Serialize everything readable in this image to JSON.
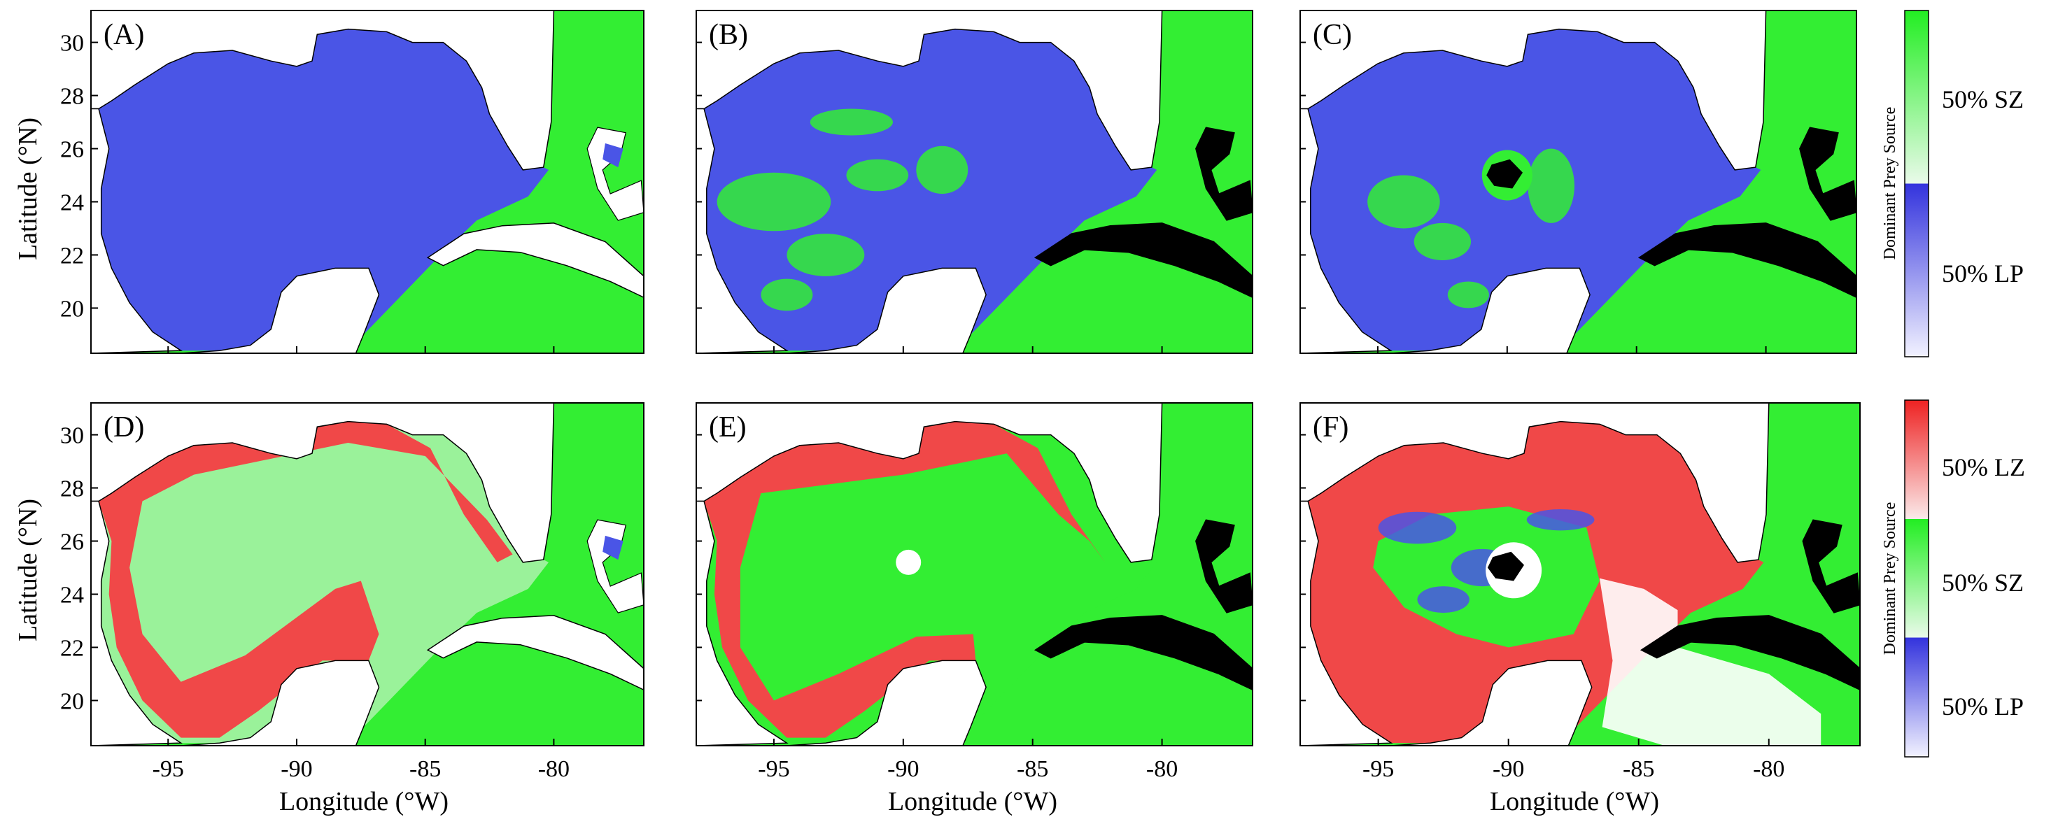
{
  "axes": {
    "xlabel": "Longitude (°W)",
    "ylabel": "Latitude (°N)",
    "x_ticks": [
      "-95",
      "-90",
      "-85",
      "-80"
    ],
    "y_ticks": [
      "30",
      "28",
      "26",
      "24",
      "22",
      "20"
    ]
  },
  "panels": [
    {
      "id": "A",
      "label": "(A)"
    },
    {
      "id": "B",
      "label": "(B)"
    },
    {
      "id": "C",
      "label": "(C)"
    },
    {
      "id": "D",
      "label": "(D)"
    },
    {
      "id": "E",
      "label": "(E)"
    },
    {
      "id": "F",
      "label": "(F)"
    }
  ],
  "colorbars": [
    {
      "title": "Dominant Prey Source",
      "labels": [
        "50% SZ",
        "50% LP"
      ],
      "colors": [
        "#22ee22",
        "#3333dd"
      ]
    },
    {
      "title": "Dominant Prey Source",
      "labels": [
        "50% LZ",
        "50% SZ",
        "50% LP"
      ],
      "colors": [
        "#ee2222",
        "#22ee22",
        "#3333dd"
      ]
    }
  ],
  "colors": {
    "land": "#ffffff",
    "island": "#000000",
    "lp": "#4a55e6",
    "sz": "#33ee33",
    "lz": "#f04848",
    "sz_light": "#9af29a"
  }
}
